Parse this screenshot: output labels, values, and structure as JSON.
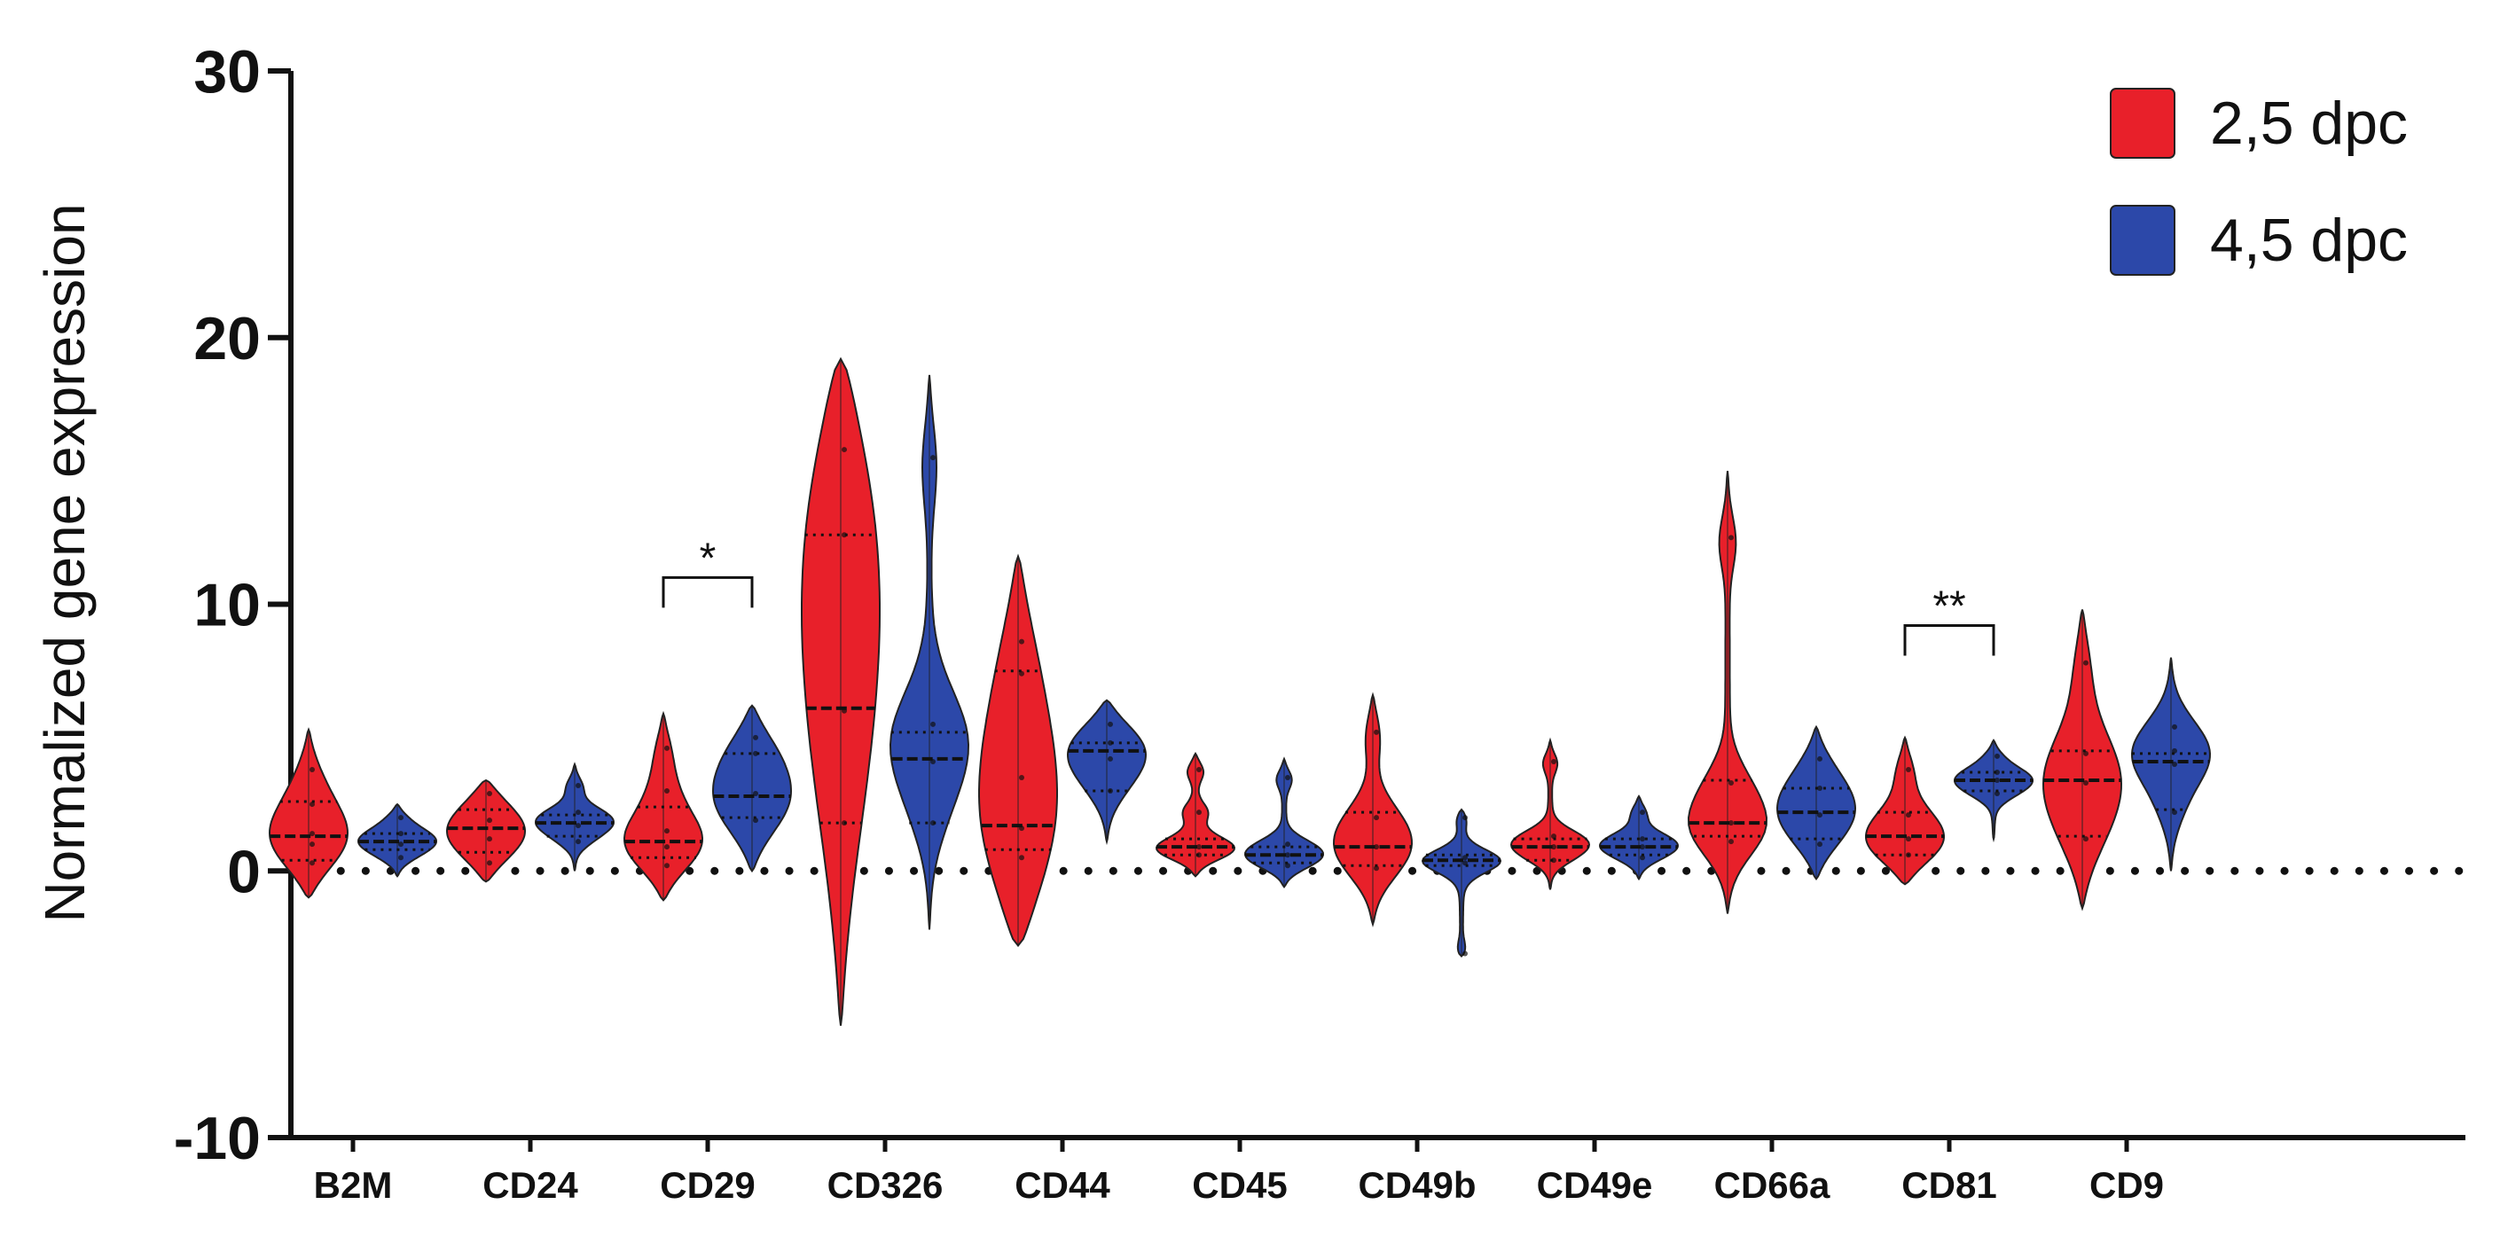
{
  "chart_data": {
    "type": "violin",
    "title": "",
    "xlabel": "",
    "ylabel": "Normalized gene expression",
    "ylim": [
      -10,
      30
    ],
    "yticks": [
      -10,
      0,
      10,
      20,
      30
    ],
    "zero_line": "dotted",
    "categories": [
      "B2M",
      "CD24",
      "CD29",
      "CD326",
      "CD44",
      "CD45",
      "CD49b",
      "CD49e",
      "CD66a",
      "CD81",
      "CD9"
    ],
    "legend": {
      "placement": "top-right"
    },
    "series": [
      {
        "name": "2,5 dpc",
        "color": "#e8202a",
        "violins": [
          {
            "min": -1.0,
            "max": 5.3,
            "median": 1.3,
            "q1": 0.4,
            "q3": 2.6,
            "mode": 1.2,
            "points": [
              0.3,
              1.0,
              1.4,
              2.5,
              3.8
            ]
          },
          {
            "min": -0.4,
            "max": 3.4,
            "median": 1.6,
            "q1": 0.7,
            "q3": 2.3,
            "mode": 1.5,
            "points": [
              0.3,
              1.2,
              1.9,
              2.9
            ]
          },
          {
            "min": -1.1,
            "max": 5.9,
            "median": 1.1,
            "q1": 0.5,
            "q3": 2.4,
            "mode": 1.0,
            "points": [
              0.2,
              0.9,
              1.5,
              3.0,
              4.6
            ]
          },
          {
            "min": -5.8,
            "max": 19.2,
            "median": 6.1,
            "q1": 1.8,
            "q3": 12.6,
            "mode": 12.0,
            "points": [
              1.8,
              6.0,
              12.6,
              15.8
            ]
          },
          {
            "min": -2.8,
            "max": 11.8,
            "median": 1.7,
            "q1": 0.8,
            "q3": 7.5,
            "mode": 1.2,
            "points": [
              0.5,
              1.6,
              3.5,
              7.4,
              8.6
            ]
          },
          {
            "min": -0.2,
            "max": 4.4,
            "median": 0.9,
            "q1": 0.6,
            "q3": 1.2,
            "mode": 0.8,
            "points": [
              0.6,
              0.9,
              2.2,
              3.8
            ]
          },
          {
            "min": -2.0,
            "max": 6.6,
            "median": 0.9,
            "q1": 0.2,
            "q3": 2.2,
            "mode": 0.9,
            "points": [
              0.1,
              0.9,
              2.0,
              5.2
            ]
          },
          {
            "min": -0.7,
            "max": 4.9,
            "median": 0.9,
            "q1": 0.4,
            "q3": 1.2,
            "mode": 0.9,
            "points": [
              0.4,
              0.9,
              1.3,
              4.1
            ]
          },
          {
            "min": -1.6,
            "max": 15.0,
            "median": 1.8,
            "q1": 1.3,
            "q3": 3.4,
            "mode": 1.6,
            "points": [
              1.1,
              1.8,
              3.3,
              12.5
            ]
          },
          {
            "min": -0.5,
            "max": 5.0,
            "median": 1.3,
            "q1": 0.6,
            "q3": 2.2,
            "mode": 1.0,
            "points": [
              0.6,
              1.2,
              2.1,
              3.8
            ]
          },
          {
            "min": -1.4,
            "max": 9.8,
            "median": 3.4,
            "q1": 1.3,
            "q3": 4.5,
            "mode": 2.8,
            "points": [
              1.2,
              3.3,
              4.4,
              7.8
            ]
          }
        ]
      },
      {
        "name": "4,5 dpc",
        "color": "#2c48a9",
        "violins": [
          {
            "min": -0.2,
            "max": 2.5,
            "median": 1.1,
            "q1": 0.8,
            "q3": 1.4,
            "mode": 1.1,
            "points": [
              0.5,
              1.0,
              1.4,
              2.0
            ]
          },
          {
            "min": 0.0,
            "max": 4.0,
            "median": 1.8,
            "q1": 1.3,
            "q3": 2.1,
            "mode": 1.8,
            "points": [
              1.1,
              1.7,
              2.2,
              3.2
            ]
          },
          {
            "min": 0.0,
            "max": 6.2,
            "median": 2.8,
            "q1": 2.0,
            "q3": 4.4,
            "mode": 2.8,
            "points": [
              1.9,
              2.9,
              4.4,
              5.0
            ]
          },
          {
            "min": -2.2,
            "max": 18.6,
            "median": 4.2,
            "q1": 1.8,
            "q3": 5.2,
            "mode": 4.5,
            "points": [
              1.8,
              4.1,
              5.5,
              15.5
            ]
          },
          {
            "min": 1.1,
            "max": 6.4,
            "median": 4.5,
            "q1": 3.0,
            "q3": 4.8,
            "mode": 4.4,
            "points": [
              3.0,
              4.2,
              4.8,
              5.5
            ]
          },
          {
            "min": -0.6,
            "max": 4.2,
            "median": 0.6,
            "q1": 0.3,
            "q3": 0.9,
            "mode": 0.5,
            "points": [
              0.2,
              0.6,
              1.0,
              3.5
            ]
          },
          {
            "min": -3.2,
            "max": 2.3,
            "median": 0.4,
            "q1": 0.2,
            "q3": 0.6,
            "mode": 0.4,
            "points": [
              0.3,
              0.5,
              2.0,
              -3.1
            ]
          },
          {
            "min": -0.3,
            "max": 2.8,
            "median": 0.9,
            "q1": 0.6,
            "q3": 1.2,
            "mode": 0.9,
            "points": [
              0.5,
              0.9,
              1.2,
              2.2
            ]
          },
          {
            "min": -0.3,
            "max": 5.4,
            "median": 2.2,
            "q1": 1.2,
            "q3": 3.1,
            "mode": 2.2,
            "points": [
              1.0,
              2.1,
              3.1,
              4.2
            ]
          },
          {
            "min": 1.2,
            "max": 4.9,
            "median": 3.4,
            "q1": 3.0,
            "q3": 3.7,
            "mode": 3.4,
            "points": [
              2.9,
              3.4,
              3.7,
              4.3
            ]
          },
          {
            "min": 0.0,
            "max": 8.0,
            "median": 4.1,
            "q1": 2.3,
            "q3": 4.4,
            "mode": 4.3,
            "points": [
              2.2,
              4.0,
              4.5,
              5.4
            ]
          }
        ]
      }
    ],
    "annotations": [
      {
        "text": "*",
        "category": "CD29",
        "y": 11.0
      },
      {
        "text": "**",
        "category": "CD81",
        "y": 9.2
      }
    ]
  }
}
